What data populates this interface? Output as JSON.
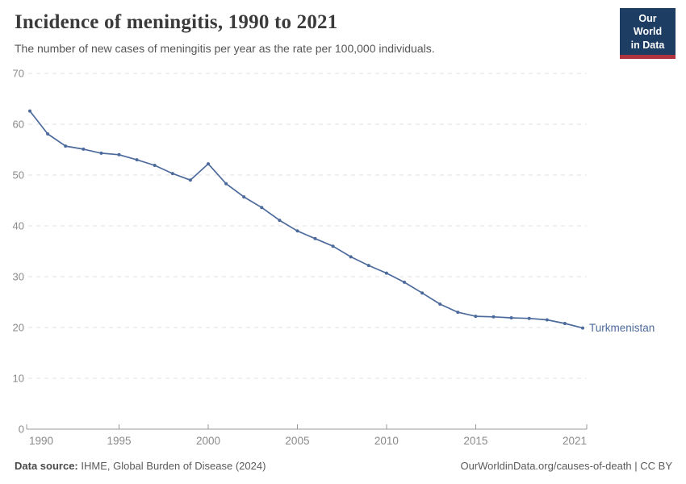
{
  "header": {
    "title": "Incidence of meningitis, 1990 to 2021",
    "subtitle": "The number of new cases of meningitis per year as the rate per 100,000 individuals.",
    "logo": {
      "line1": "Our World",
      "line2": "in Data",
      "bg_color": "#1d3d63",
      "accent_color": "#b0343f"
    }
  },
  "chart_data": {
    "type": "line",
    "title": "Incidence of meningitis, 1990 to 2021",
    "xlabel": "",
    "ylabel": "",
    "xlim": [
      1990,
      2021
    ],
    "ylim": [
      0,
      70
    ],
    "y_ticks": [
      0,
      10,
      20,
      30,
      40,
      50,
      60,
      70
    ],
    "x_ticks": [
      1990,
      1995,
      2000,
      2005,
      2010,
      2015,
      2021
    ],
    "grid": "horizontal-dashed",
    "legend_position": "end-of-line-label",
    "series": [
      {
        "name": "Turkmenistan",
        "color": "#4c6a9c",
        "x": [
          1990,
          1991,
          1992,
          1993,
          1994,
          1995,
          1996,
          1997,
          1998,
          1999,
          2000,
          2001,
          2002,
          2003,
          2004,
          2005,
          2006,
          2007,
          2008,
          2009,
          2010,
          2011,
          2012,
          2013,
          2014,
          2015,
          2016,
          2017,
          2018,
          2019,
          2020,
          2021
        ],
        "values": [
          62.6,
          58.1,
          55.7,
          55.1,
          54.3,
          54.0,
          53.0,
          51.9,
          50.3,
          49.0,
          52.2,
          48.3,
          45.7,
          43.6,
          41.1,
          39.0,
          37.5,
          36.0,
          33.9,
          32.2,
          30.7,
          28.9,
          26.8,
          24.6,
          23.0,
          22.2,
          22.1,
          21.9,
          21.8,
          21.5,
          20.8,
          19.9
        ]
      }
    ]
  },
  "footer": {
    "source_label": "Data source:",
    "source_value": "IHME, Global Burden of Disease (2024)",
    "attribution": "OurWorldinData.org/causes-of-death | CC BY"
  }
}
